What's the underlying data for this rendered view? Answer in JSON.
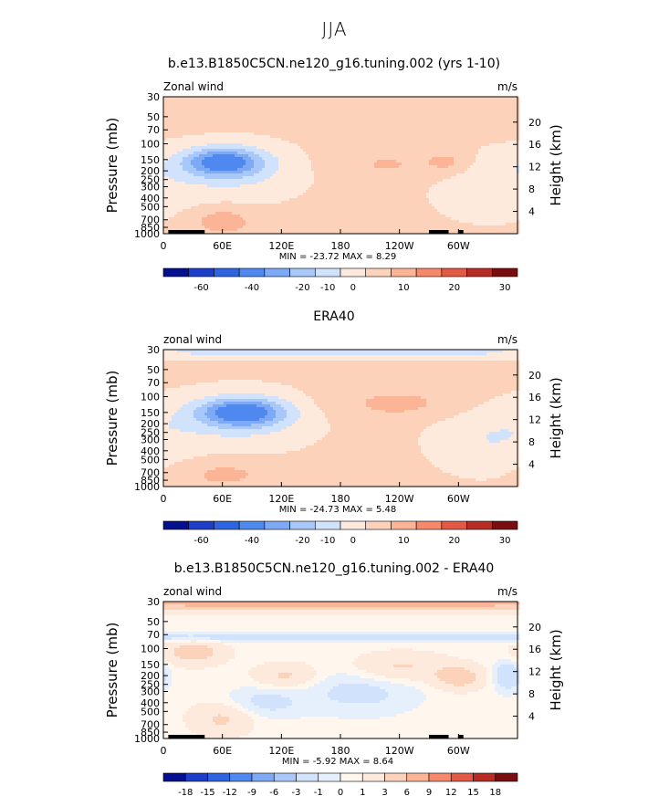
{
  "figure": {
    "title": "JJA"
  },
  "palette_main": [
    "#04108d",
    "#1d3ec8",
    "#2f64e0",
    "#4f88ef",
    "#7ea9f5",
    "#a8c8fa",
    "#d0e2fc",
    "#fdeadd",
    "#fdd2bb",
    "#fbb596",
    "#f5896a",
    "#e25a43",
    "#b72d25",
    "#7a0d10"
  ],
  "palette_diff": [
    "#04108d",
    "#1d3ec8",
    "#2f64e0",
    "#4f88ef",
    "#7ea9f5",
    "#a8c8fa",
    "#d0e2fc",
    "#e6f0fd",
    "#fff6ee",
    "#fdeadd",
    "#fdd2bb",
    "#fbb596",
    "#f5896a",
    "#e25a43",
    "#b72d25",
    "#7a0d10"
  ],
  "chart_data": [
    {
      "type": "heatmap",
      "title": "b.e13.B1850C5CN.ne120_g16.tuning.002 (yrs 1-10)",
      "left_label": "Zonal wind",
      "right_label": "m/s",
      "ylabel": "Pressure (mb)",
      "ylabel_right": "Height (km)",
      "x_ticks": [
        "0",
        "60E",
        "120E",
        "180",
        "120W",
        "60W"
      ],
      "x_tick_values": [
        0,
        60,
        120,
        180,
        240,
        300
      ],
      "xlim": [
        0,
        360
      ],
      "y_ticks": [
        "30",
        "50",
        "70",
        "100",
        "150",
        "200",
        "250",
        "300",
        "400",
        "500",
        "700",
        "850",
        "1000"
      ],
      "y_tick_values": [
        30,
        50,
        70,
        100,
        150,
        200,
        250,
        300,
        400,
        500,
        700,
        850,
        1000
      ],
      "ylim": [
        1000,
        30
      ],
      "height_ticks": [
        "20",
        "16",
        "12",
        "8",
        "4"
      ],
      "height_tick_values": [
        20,
        16,
        12,
        8,
        4
      ],
      "stats": "MIN = -23.72   MAX =    8.29",
      "min": -23.72,
      "max": 8.29,
      "colorbar_labels": [
        "-60",
        "-40",
        "-20",
        "-10",
        "0",
        "10",
        "20",
        "30"
      ],
      "levels": [
        -70,
        -60,
        -50,
        -40,
        -30,
        -20,
        -15,
        -10,
        -5,
        0,
        5,
        10,
        15,
        20,
        25,
        30,
        35
      ],
      "field": [
        {
          "lon": 60,
          "p": 160,
          "dx": 38,
          "dp": 0.35,
          "amp": -22
        },
        {
          "lon": 75,
          "p": 200,
          "dx": 70,
          "dp": 0.75,
          "amp": -7
        },
        {
          "lon": 230,
          "p": 170,
          "dx": 60,
          "dp": 0.45,
          "amp": 4
        },
        {
          "lon": 290,
          "p": 160,
          "dx": 22,
          "dp": 0.3,
          "amp": 5
        },
        {
          "lon": 60,
          "p": 720,
          "dx": 30,
          "dp": 0.35,
          "amp": 7
        },
        {
          "lon": 330,
          "p": 300,
          "dx": 60,
          "dp": 0.9,
          "amp": -5
        }
      ],
      "base": 1.5,
      "topo": [
        [
          5,
          30
        ],
        [
          18,
          42
        ],
        [
          270,
          290
        ],
        [
          300,
          305
        ]
      ]
    },
    {
      "type": "heatmap",
      "title": "ERA40",
      "left_label": "zonal wind",
      "right_label": "m/s",
      "ylabel": "Pressure (mb)",
      "ylabel_right": "Height (km)",
      "x_ticks": [
        "0",
        "60E",
        "120E",
        "180",
        "120W",
        "60W"
      ],
      "x_tick_values": [
        0,
        60,
        120,
        180,
        240,
        300
      ],
      "xlim": [
        0,
        360
      ],
      "y_ticks": [
        "30",
        "50",
        "70",
        "100",
        "150",
        "200",
        "250",
        "300",
        "400",
        "500",
        "700",
        "850",
        "1000"
      ],
      "y_tick_values": [
        30,
        50,
        70,
        100,
        150,
        200,
        250,
        300,
        400,
        500,
        700,
        850,
        1000
      ],
      "ylim": [
        1000,
        30
      ],
      "height_ticks": [
        "20",
        "16",
        "12",
        "8",
        "4"
      ],
      "height_tick_values": [
        20,
        16,
        12,
        8,
        4
      ],
      "stats": "MIN = -24.73   MAX =    5.48",
      "min": -24.73,
      "max": 5.48,
      "colorbar_labels": [
        "-60",
        "-40",
        "-20",
        "-10",
        "0",
        "10",
        "20",
        "30"
      ],
      "levels": [
        -70,
        -60,
        -50,
        -40,
        -30,
        -20,
        -15,
        -10,
        -5,
        0,
        5,
        10,
        15,
        20,
        25,
        30,
        35
      ],
      "field": [
        {
          "lon": 80,
          "p": 150,
          "dx": 42,
          "dp": 0.35,
          "amp": -23
        },
        {
          "lon": 80,
          "p": 180,
          "dx": 75,
          "dp": 0.8,
          "amp": -7
        },
        {
          "lon": 180,
          "p": 32,
          "dx": 400,
          "dp": 0.15,
          "amp": -8
        },
        {
          "lon": 240,
          "p": 120,
          "dx": 70,
          "dp": 0.4,
          "amp": 5
        },
        {
          "lon": 60,
          "p": 720,
          "dx": 50,
          "dp": 0.4,
          "amp": 5
        },
        {
          "lon": 330,
          "p": 300,
          "dx": 60,
          "dp": 0.9,
          "amp": -6
        }
      ],
      "base": 1.5,
      "topo": []
    },
    {
      "type": "heatmap",
      "title": "b.e13.B1850C5CN.ne120_g16.tuning.002 - ERA40",
      "left_label": "zonal wind",
      "right_label": "m/s",
      "ylabel": "Pressure (mb)",
      "ylabel_right": "Height (km)",
      "x_ticks": [
        "0",
        "60E",
        "120E",
        "180",
        "120W",
        "60W"
      ],
      "x_tick_values": [
        0,
        60,
        120,
        180,
        240,
        300
      ],
      "xlim": [
        0,
        360
      ],
      "y_ticks": [
        "30",
        "50",
        "70",
        "100",
        "150",
        "200",
        "250",
        "300",
        "400",
        "500",
        "700",
        "850",
        "1000"
      ],
      "y_tick_values": [
        30,
        50,
        70,
        100,
        150,
        200,
        250,
        300,
        400,
        500,
        700,
        850,
        1000
      ],
      "ylim": [
        1000,
        30
      ],
      "height_ticks": [
        "20",
        "16",
        "12",
        "8",
        "4"
      ],
      "height_tick_values": [
        20,
        16,
        12,
        8,
        4
      ],
      "stats": "MIN =   -5.92   MAX =    8.64",
      "min": -5.92,
      "max": 8.64,
      "colorbar_labels": [
        "-18",
        "-15",
        "-12",
        "-9",
        "-6",
        "-3",
        "-1",
        "0",
        "1",
        "3",
        "6",
        "9",
        "12",
        "15",
        "18"
      ],
      "levels": [
        -21,
        -18,
        -15,
        -12,
        -9,
        -6,
        -3,
        -1,
        0,
        1,
        3,
        6,
        9,
        12,
        15,
        18,
        21
      ],
      "field": [
        {
          "lon": 180,
          "p": 30,
          "dx": 500,
          "dp": 0.2,
          "amp": 8
        },
        {
          "lon": 180,
          "p": 75,
          "dx": 500,
          "dp": 0.12,
          "amp": -2.5
        },
        {
          "lon": 30,
          "p": 110,
          "dx": 30,
          "dp": 0.3,
          "amp": 4
        },
        {
          "lon": 125,
          "p": 200,
          "dx": 30,
          "dp": 0.3,
          "amp": 3
        },
        {
          "lon": 240,
          "p": 160,
          "dx": 45,
          "dp": 0.35,
          "amp": 3
        },
        {
          "lon": 300,
          "p": 210,
          "dx": 25,
          "dp": 0.3,
          "amp": 4
        },
        {
          "lon": 60,
          "p": 600,
          "dx": 30,
          "dp": 0.4,
          "amp": 3
        },
        {
          "lon": 100,
          "p": 400,
          "dx": 40,
          "dp": 0.4,
          "amp": -2
        },
        {
          "lon": 200,
          "p": 300,
          "dx": 60,
          "dp": 0.6,
          "amp": -2
        },
        {
          "lon": 350,
          "p": 200,
          "dx": 15,
          "dp": 0.4,
          "amp": -3
        }
      ],
      "base": 0.5,
      "topo": [
        [
          5,
          30
        ],
        [
          18,
          42
        ],
        [
          270,
          290
        ],
        [
          300,
          305
        ]
      ]
    }
  ]
}
